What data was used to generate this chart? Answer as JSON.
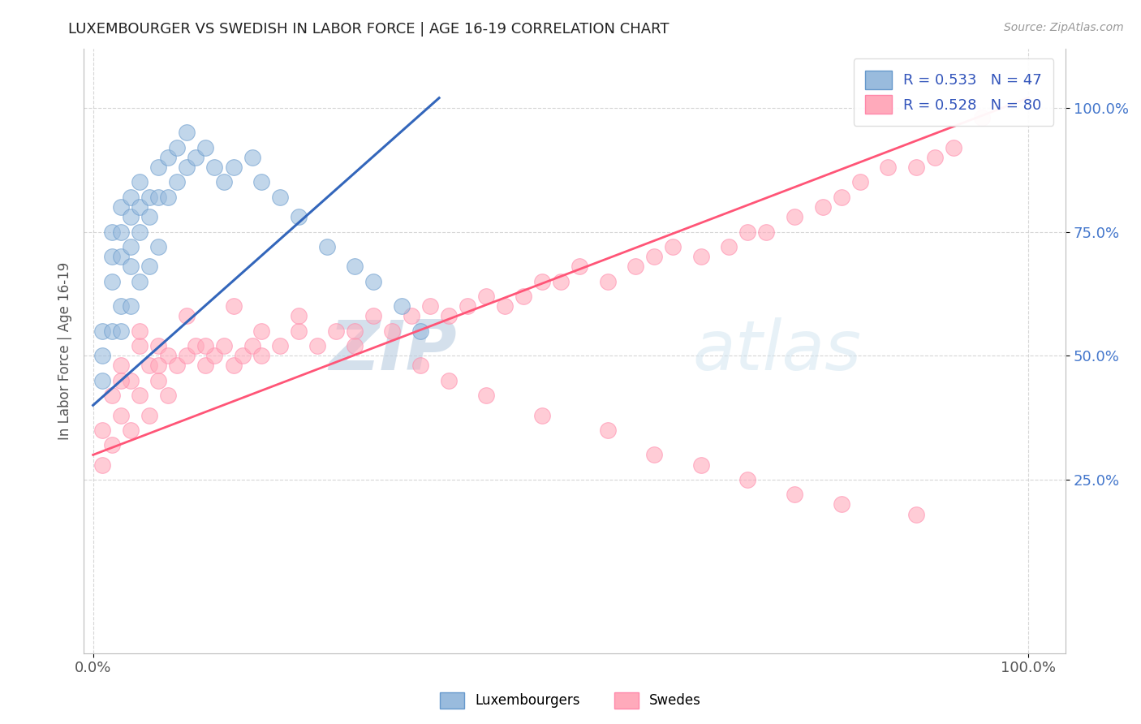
{
  "title": "LUXEMBOURGER VS SWEDISH IN LABOR FORCE | AGE 16-19 CORRELATION CHART",
  "source_text": "Source: ZipAtlas.com",
  "ylabel": "In Labor Force | Age 16-19",
  "legend_label1": "Luxembourgers",
  "legend_label2": "Swedes",
  "r1": 0.533,
  "n1": 47,
  "r2": 0.528,
  "n2": 80,
  "blue_color": "#99BBDD",
  "blue_edge_color": "#6699CC",
  "pink_color": "#FFAABB",
  "pink_edge_color": "#FF88AA",
  "blue_line_color": "#3366BB",
  "pink_line_color": "#FF5577",
  "watermark_zip": "ZIP",
  "watermark_atlas": "atlas",
  "watermark_color": "#C8D8E8",
  "background_color": "#FFFFFF",
  "blue_scatter_x": [
    0.01,
    0.01,
    0.01,
    0.02,
    0.02,
    0.02,
    0.02,
    0.03,
    0.03,
    0.03,
    0.03,
    0.03,
    0.04,
    0.04,
    0.04,
    0.04,
    0.04,
    0.05,
    0.05,
    0.05,
    0.05,
    0.06,
    0.06,
    0.06,
    0.07,
    0.07,
    0.07,
    0.08,
    0.08,
    0.09,
    0.09,
    0.1,
    0.1,
    0.11,
    0.12,
    0.13,
    0.14,
    0.15,
    0.17,
    0.18,
    0.2,
    0.22,
    0.25,
    0.28,
    0.3,
    0.33,
    0.35
  ],
  "blue_scatter_y": [
    0.55,
    0.5,
    0.45,
    0.75,
    0.7,
    0.65,
    0.55,
    0.8,
    0.75,
    0.7,
    0.6,
    0.55,
    0.82,
    0.78,
    0.72,
    0.68,
    0.6,
    0.85,
    0.8,
    0.75,
    0.65,
    0.82,
    0.78,
    0.68,
    0.88,
    0.82,
    0.72,
    0.9,
    0.82,
    0.92,
    0.85,
    0.95,
    0.88,
    0.9,
    0.92,
    0.88,
    0.85,
    0.88,
    0.9,
    0.85,
    0.82,
    0.78,
    0.72,
    0.68,
    0.65,
    0.6,
    0.55
  ],
  "pink_scatter_x": [
    0.01,
    0.01,
    0.02,
    0.02,
    0.03,
    0.03,
    0.04,
    0.04,
    0.05,
    0.05,
    0.06,
    0.06,
    0.07,
    0.07,
    0.08,
    0.08,
    0.09,
    0.1,
    0.11,
    0.12,
    0.13,
    0.14,
    0.15,
    0.16,
    0.17,
    0.18,
    0.2,
    0.22,
    0.24,
    0.26,
    0.28,
    0.3,
    0.32,
    0.34,
    0.36,
    0.38,
    0.4,
    0.42,
    0.44,
    0.46,
    0.48,
    0.5,
    0.52,
    0.55,
    0.58,
    0.6,
    0.62,
    0.65,
    0.68,
    0.7,
    0.72,
    0.75,
    0.78,
    0.8,
    0.82,
    0.85,
    0.88,
    0.9,
    0.92,
    0.95,
    0.03,
    0.05,
    0.07,
    0.1,
    0.12,
    0.15,
    0.18,
    0.22,
    0.28,
    0.35,
    0.38,
    0.42,
    0.48,
    0.55,
    0.6,
    0.65,
    0.7,
    0.75,
    0.8,
    0.88
  ],
  "pink_scatter_y": [
    0.35,
    0.28,
    0.42,
    0.32,
    0.48,
    0.38,
    0.45,
    0.35,
    0.52,
    0.42,
    0.48,
    0.38,
    0.52,
    0.45,
    0.5,
    0.42,
    0.48,
    0.5,
    0.52,
    0.48,
    0.5,
    0.52,
    0.48,
    0.5,
    0.52,
    0.5,
    0.52,
    0.55,
    0.52,
    0.55,
    0.55,
    0.58,
    0.55,
    0.58,
    0.6,
    0.58,
    0.6,
    0.62,
    0.6,
    0.62,
    0.65,
    0.65,
    0.68,
    0.65,
    0.68,
    0.7,
    0.72,
    0.7,
    0.72,
    0.75,
    0.75,
    0.78,
    0.8,
    0.82,
    0.85,
    0.88,
    0.88,
    0.9,
    0.92,
    0.98,
    0.45,
    0.55,
    0.48,
    0.58,
    0.52,
    0.6,
    0.55,
    0.58,
    0.52,
    0.48,
    0.45,
    0.42,
    0.38,
    0.35,
    0.3,
    0.28,
    0.25,
    0.22,
    0.2,
    0.18
  ]
}
